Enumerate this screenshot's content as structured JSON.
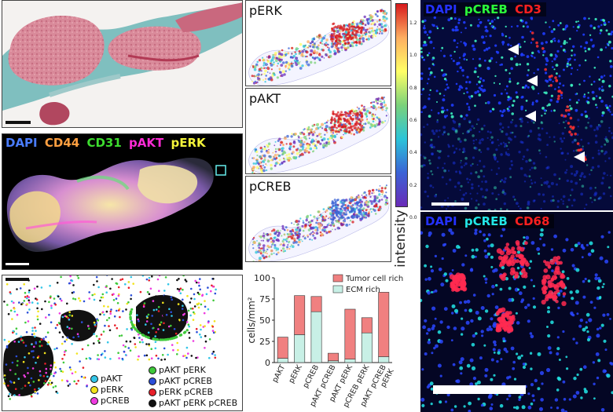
{
  "panel_stain": {},
  "panel_multiplex": {
    "labels": [
      {
        "text": "DAPI",
        "color": "#4a7dff"
      },
      {
        "text": "CD44",
        "color": "#ff9f40"
      },
      {
        "text": "CD31",
        "color": "#3ddc2f"
      },
      {
        "text": "pAKT",
        "color": "#ff2bd6"
      },
      {
        "text": "pERK",
        "color": "#f4f43a"
      }
    ]
  },
  "heatmaps": {
    "labels": [
      "pERK",
      "pAKT",
      "pCREB"
    ],
    "colorbar": {
      "ticks": [
        "1.2",
        "1.0",
        "0.8",
        "0.6",
        "0.4",
        "0.2",
        "0.0"
      ],
      "label": "intensity",
      "colors": [
        "#d7191c",
        "#fdae61",
        "#ffff66",
        "#7bd27a",
        "#2bc4d8",
        "#3b63d6",
        "#6a2bb8"
      ]
    }
  },
  "panel_cd3": {
    "labels": [
      {
        "text": "DAPI",
        "color": "#2431ff"
      },
      {
        "text": "pCREB",
        "color": "#2bff3a"
      },
      {
        "text": "CD3",
        "color": "#ff2020"
      }
    ]
  },
  "panel_cd68": {
    "labels": [
      {
        "text": "DAPI",
        "color": "#2431ff"
      },
      {
        "text": "pCREB",
        "color": "#22e6e6"
      },
      {
        "text": "CD68",
        "color": "#ff2020"
      }
    ]
  },
  "cluster_legend": {
    "col1": [
      {
        "text": "pAKT",
        "color": "#33c6e8"
      },
      {
        "text": "pERK",
        "color": "#f2e41c"
      },
      {
        "text": "pCREB",
        "color": "#ee3be0"
      }
    ],
    "col2": [
      {
        "text": "pAKT pERK",
        "color": "#3fc93a"
      },
      {
        "text": "pAKT pCREB",
        "color": "#2b4ed8"
      },
      {
        "text": "pERK pCREB",
        "color": "#e8202a"
      },
      {
        "text": "pAKT pERK pCREB",
        "color": "#111111"
      }
    ]
  },
  "chart_data": {
    "type": "bar",
    "stacked": true,
    "ylabel": "cells/mm²",
    "ylim": [
      0,
      100
    ],
    "yticks": [
      0,
      25,
      50,
      75,
      100
    ],
    "categories": [
      "pAKT",
      "pERK",
      "pCREB",
      "pAKT pCREB",
      "pAKT pERK",
      "pCREB pERK",
      "pAKT pCREB pERK"
    ],
    "category_lines": [
      [
        "pAKT"
      ],
      [
        "pERK"
      ],
      [
        "pCREB"
      ],
      [
        "pAKT pCREB"
      ],
      [
        "pAKT pERK"
      ],
      [
        "pCREB pERK"
      ],
      [
        "pAKT pCREB",
        "pERK"
      ]
    ],
    "series": [
      {
        "name": "ECM rich",
        "color": "#c8f0e6",
        "values": [
          5,
          33,
          60,
          2,
          4,
          35,
          7
        ]
      },
      {
        "name": "Tumor cell rich",
        "color": "#f08080",
        "values": [
          25,
          46,
          18,
          9,
          59,
          18,
          76
        ]
      }
    ],
    "legend": "top-right",
    "grid": false
  }
}
